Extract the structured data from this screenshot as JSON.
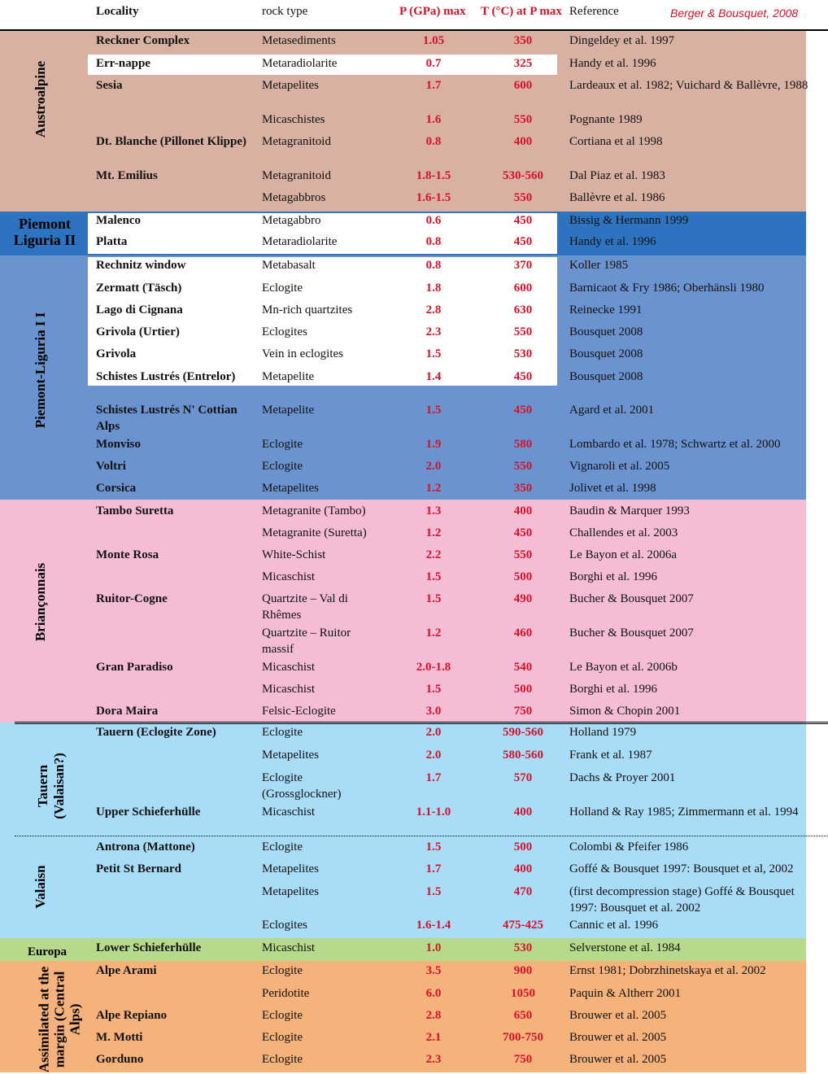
{
  "header": {
    "locality": "Locality",
    "rock_type": "rock type",
    "p_max": "P (GPa) max",
    "t_at_p": "T (°C) at P max",
    "reference": "Reference",
    "citation": "Berger & Bousquet, 2008"
  },
  "colors": {
    "austroalpine": "#d8b1a3",
    "piemont_liguria_ii": "#2e73bf",
    "piemont_liguria_i": "#6a93cf",
    "brianconnais": "#f5bcd6",
    "tauern_valaisan": "#a9dcf7",
    "europa": "#b7d98b",
    "assimilated": "#f5b27a",
    "red_values": "#d4132b"
  },
  "groups": [
    {
      "label": "Austroalpine",
      "orientation": "vertical"
    },
    {
      "label": "Piemont Liguria   II",
      "orientation": "horizontal"
    },
    {
      "label": "Piemont-Liguria I I",
      "orientation": "vertical"
    },
    {
      "label": "Briançonnais",
      "orientation": "vertical"
    },
    {
      "label": "Tauern (Valaisan?)",
      "orientation": "vertical"
    },
    {
      "label": "Valaisn",
      "orientation": "vertical"
    },
    {
      "label": "Europa",
      "orientation": "horizontal"
    },
    {
      "label": "Assimilated at the margin (Central Alps)",
      "orientation": "vertical"
    }
  ],
  "rows": [
    {
      "locality": "Reckner Complex",
      "rock": "Metasediments",
      "p": "1.05",
      "t": "350",
      "ref": "Dingeldey et al. 1997"
    },
    {
      "locality": "Err-nappe",
      "rock": "Metaradiolarite",
      "p": "0.7",
      "t": "325",
      "ref": "Handy et al. 1996"
    },
    {
      "locality": "Sesia",
      "rock": "Metapelites",
      "p": "1.7",
      "t": "600",
      "ref": "Lardeaux et al. 1982; Vuichard & Ballèvre, 1988"
    },
    {
      "locality": "",
      "rock": "Micaschistes",
      "p": "1.6",
      "t": "550",
      "ref": "Pognante 1989"
    },
    {
      "locality": "Dt. Blanche (Pillonet Klippe)",
      "rock": "Metagranitoid",
      "p": "0.8",
      "t": "400",
      "ref": "Cortiana et al 1998"
    },
    {
      "locality": "Mt. Emilius",
      "rock": "Metagranitoid",
      "p": "1.8-1.5",
      "t": "530-560",
      "ref": "Dal Piaz et al. 1983"
    },
    {
      "locality": "",
      "rock": "Metagabbros",
      "p": "1.6-1.5",
      "t": "550",
      "ref": "Ballèvre et al. 1986"
    },
    {
      "locality": "Malenco",
      "rock": "Metagabbro",
      "p": "0.6",
      "t": "450",
      "ref": "Bissig & Hermann 1999"
    },
    {
      "locality": "Platta",
      "rock": "Metaradiolarite",
      "p": "0.8",
      "t": "450",
      "ref": "Handy et al. 1996"
    },
    {
      "locality": "Rechnitz window",
      "rock": "Metabasalt",
      "p": "0.8",
      "t": "370",
      "ref": "Koller 1985"
    },
    {
      "locality": "Zermatt (Täsch)",
      "rock": "Eclogite",
      "p": "1.8",
      "t": "600",
      "ref": "Barnicaot & Fry 1986; Oberhänsli 1980"
    },
    {
      "locality": "Lago di Cignana",
      "rock": "Mn-rich quartzites",
      "p": "2.8",
      "t": "630",
      "ref": "Reinecke 1991"
    },
    {
      "locality": "Grivola (Urtier)",
      "rock": "Eclogites",
      "p": "2.3",
      "t": "550",
      "ref": "Bousquet 2008"
    },
    {
      "locality": "Grivola",
      "rock": "Vein in eclogites",
      "p": "1.5",
      "t": "530",
      "ref": "Bousquet 2008"
    },
    {
      "locality": "Schistes Lustrés (Entrelor)",
      "rock": "Metapelite",
      "p": "1.4",
      "t": "450",
      "ref": "Bousquet 2008"
    },
    {
      "locality": "Schistes Lustrés N' Cottian Alps",
      "rock": "Metapelite",
      "p": "1.5",
      "t": "450",
      "ref": "Agard et al. 2001"
    },
    {
      "locality": "Monviso",
      "rock": "Eclogite",
      "p": "1.9",
      "t": "580",
      "ref": "Lombardo et al. 1978; Schwartz et al. 2000"
    },
    {
      "locality": "Voltri",
      "rock": "Eclogite",
      "p": "2.0",
      "t": "550",
      "ref": "Vignaroli et al. 2005"
    },
    {
      "locality": "Corsica",
      "rock": "Metapelites",
      "p": "1.2",
      "t": "350",
      "ref": "Jolivet et al. 1998"
    },
    {
      "locality": "Tambo Suretta",
      "rock": "Metagranite (Tambo)",
      "p": "1.3",
      "t": "400",
      "ref": "Baudin & Marquer 1993"
    },
    {
      "locality": "",
      "rock": "Metagranite (Suretta)",
      "p": "1.2",
      "t": "450",
      "ref": "Challendes et al. 2003"
    },
    {
      "locality": "Monte Rosa",
      "rock": "White-Schist",
      "p": "2.2",
      "t": "550",
      "ref": "Le Bayon et al. 2006a"
    },
    {
      "locality": "",
      "rock": "Micaschist",
      "p": "1.5",
      "t": "500",
      "ref": "Borghi et al. 1996"
    },
    {
      "locality": "Ruitor-Cogne",
      "rock": "Quartzite – Val di Rhêmes",
      "p": "1.5",
      "t": "490",
      "ref": "Bucher & Bousquet 2007"
    },
    {
      "locality": "",
      "rock": "Quartzite – Ruitor massif",
      "p": "1.2",
      "t": "460",
      "ref": "Bucher & Bousquet 2007"
    },
    {
      "locality": "Gran Paradiso",
      "rock": "Micaschist",
      "p": "2.0-1.8",
      "t": "540",
      "ref": "Le Bayon et al. 2006b"
    },
    {
      "locality": "",
      "rock": "Micaschist",
      "p": "1.5",
      "t": "500",
      "ref": "Borghi et al. 1996"
    },
    {
      "locality": "Dora Maira",
      "rock": "Felsic-Eclogite",
      "p": "3.0",
      "t": "750",
      "ref": "Simon & Chopin 2001"
    },
    {
      "locality": "Tauern (Eclogite Zone)",
      "rock": "Eclogite",
      "p": "2.0",
      "t": "590-560",
      "ref": "Holland 1979"
    },
    {
      "locality": "",
      "rock": "Metapelites",
      "p": "2.0",
      "t": "580-560",
      "ref": "Frank et al. 1987"
    },
    {
      "locality": "",
      "rock": "Eclogite (Grossglockner)",
      "p": "1.7",
      "t": "570",
      "ref": "Dachs & Proyer 2001"
    },
    {
      "locality": "Upper Schieferhülle",
      "rock": "Micaschist",
      "p": "1.1-1.0",
      "t": "400",
      "ref": "Holland & Ray 1985; Zimmermann et al. 1994"
    },
    {
      "locality": "Antrona (Mattone)",
      "rock": "Eclogite",
      "p": "1.5",
      "t": "500",
      "ref": "Colombi & Pfeifer 1986"
    },
    {
      "locality": "Petit St Bernard",
      "rock": "Metapelites",
      "p": "1.7",
      "t": "400",
      "ref": "Goffé & Bousquet 1997: Bousquet et al, 2002"
    },
    {
      "locality": "",
      "rock": "Metapelites",
      "p": "1.5",
      "t": "470",
      "ref": "(first decompression stage) Goffé & Bousquet 1997: Bousquet et al. 2002"
    },
    {
      "locality": "",
      "rock": "Eclogites",
      "p": "1.6-1.4",
      "t": "475-425",
      "ref": "Cannic et al. 1996"
    },
    {
      "locality": "Lower Schieferhülle",
      "rock": "Micaschist",
      "p": "1.0",
      "t": "530",
      "ref": "Selverstone et al. 1984"
    },
    {
      "locality": "Alpe Arami",
      "rock": "Eclogite",
      "p": "3.5",
      "t": "900",
      "ref": "Ernst 1981; Dobrzhinetskaya et al. 2002"
    },
    {
      "locality": "",
      "rock": "Peridotite",
      "p": "6.0",
      "t": "1050",
      "ref": "Paquin & Altherr 2001"
    },
    {
      "locality": "Alpe Repiano",
      "rock": "Eclogite",
      "p": "2.8",
      "t": "650",
      "ref": "Brouwer et al. 2005"
    },
    {
      "locality": "M. Motti",
      "rock": "Eclogite",
      "p": "2.1",
      "t": "700-750",
      "ref": "Brouwer et al. 2005"
    },
    {
      "locality": "Gorduno",
      "rock": "Eclogite",
      "p": "2.3",
      "t": "750",
      "ref": "Brouwer et al. 2005"
    }
  ]
}
